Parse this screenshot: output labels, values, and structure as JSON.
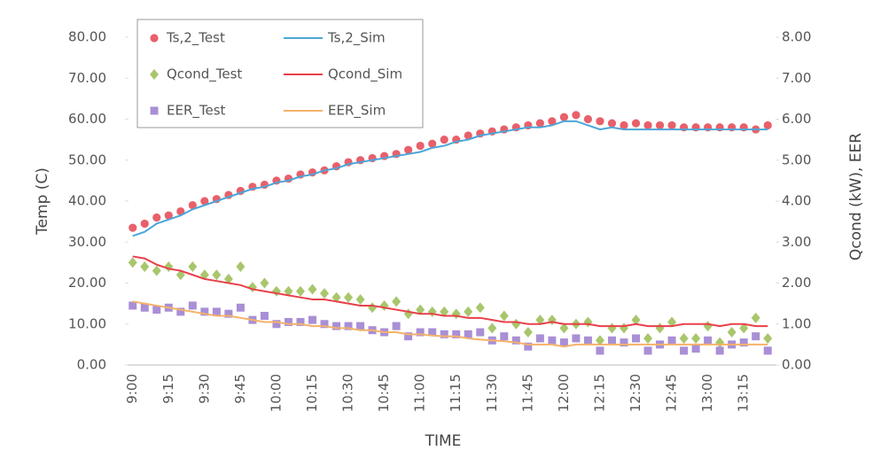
{
  "chart_data": {
    "type": "line",
    "xlabel": "TIME",
    "ylabel": "Temp (C)",
    "y2label": "Qcond (kW), EER",
    "legend": "top-left",
    "categories": [
      "9:00",
      null,
      null,
      "9:15",
      null,
      null,
      "9:30",
      null,
      null,
      "9:45",
      null,
      null,
      "10:00",
      null,
      null,
      "10:15",
      null,
      null,
      "10:30",
      null,
      null,
      "10:45",
      null,
      null,
      "11:00",
      null,
      null,
      "11:15",
      null,
      null,
      "11:30",
      null,
      null,
      "11:45",
      null,
      null,
      "12:00",
      null,
      null,
      "12:15",
      null,
      null,
      "12:30",
      null,
      null,
      "12:45",
      null,
      null,
      "13:00",
      null,
      null,
      "13:15",
      null,
      null
    ],
    "ylim": [
      0,
      80
    ],
    "yticks": [
      {
        "value": 0,
        "label": "0.00"
      },
      {
        "value": 10,
        "label": "10.00"
      },
      {
        "value": 20,
        "label": "20.00"
      },
      {
        "value": 30,
        "label": "30.00"
      },
      {
        "value": 40,
        "label": "40.00"
      },
      {
        "value": 50,
        "label": "50.00"
      },
      {
        "value": 60,
        "label": "60.00"
      },
      {
        "value": 70,
        "label": "70.00"
      },
      {
        "value": 80,
        "label": "80.00"
      }
    ],
    "y2lim": [
      0,
      8
    ],
    "y2ticks": [
      {
        "value": 0,
        "label": "0.00"
      },
      {
        "value": 1,
        "label": "1.00"
      },
      {
        "value": 2,
        "label": "2.00"
      },
      {
        "value": 3,
        "label": "3.00"
      },
      {
        "value": 4,
        "label": "4.00"
      },
      {
        "value": 5,
        "label": "5.00"
      },
      {
        "value": 6,
        "label": "6.00"
      },
      {
        "value": 7,
        "label": "7.00"
      },
      {
        "value": 8,
        "label": "8.00"
      }
    ],
    "series": [
      {
        "name": "Ts,2_Test",
        "color": "#e8606a",
        "marker": "circle",
        "values": [
          33.5,
          34.5,
          36,
          36.5,
          37.5,
          39,
          40,
          40.5,
          41.5,
          42.5,
          43.5,
          44,
          45,
          45.5,
          46.5,
          47,
          47.5,
          48.5,
          49.5,
          50,
          50.5,
          51,
          51.5,
          52.5,
          53.5,
          54,
          55,
          55,
          56,
          56.5,
          57,
          57.5,
          58,
          58.5,
          59,
          59.5,
          60.5,
          61,
          60,
          59.5,
          59,
          58.5,
          59,
          58.5,
          58.5,
          58.5,
          58,
          58,
          58,
          58,
          58,
          58,
          57.5,
          58.5
        ]
      },
      {
        "name": "Ts,2_Sim",
        "color": "#4ca6d8",
        "marker": "none",
        "values": [
          31.5,
          32.5,
          34.5,
          35.5,
          36.5,
          38,
          39,
          40,
          41,
          42,
          43,
          43.5,
          44.5,
          45,
          46,
          46.5,
          47.5,
          48,
          49,
          49.5,
          50,
          50.5,
          51,
          51.5,
          52,
          53,
          53.5,
          54.5,
          55,
          56,
          56.5,
          57,
          57.5,
          58,
          58,
          58.5,
          59.5,
          59.5,
          58.5,
          57.5,
          58,
          57.5,
          57.5,
          57.5,
          57.5,
          57.5,
          57.5,
          57.5,
          57.5,
          57.5,
          57.5,
          57.5,
          57.5,
          57.5
        ]
      },
      {
        "name": "Qcond_Test",
        "color": "#a8c66c",
        "marker": "diamond",
        "axis": "y2",
        "values": [
          2.5,
          2.4,
          2.3,
          2.4,
          2.2,
          2.4,
          2.2,
          2.2,
          2.1,
          2.4,
          1.9,
          2.0,
          1.8,
          1.8,
          1.8,
          1.85,
          1.75,
          1.65,
          1.65,
          1.6,
          1.4,
          1.45,
          1.55,
          1.25,
          1.35,
          1.3,
          1.3,
          1.25,
          1.3,
          1.4,
          0.9,
          1.2,
          1.0,
          0.8,
          1.1,
          1.1,
          0.9,
          1.0,
          1.05,
          0.6,
          0.9,
          0.9,
          1.1,
          0.65,
          0.9,
          1.05,
          0.65,
          0.65,
          0.95,
          0.55,
          0.8,
          0.9,
          1.15,
          0.65
        ]
      },
      {
        "name": "Qcond_Sim",
        "color": "#e8404a",
        "marker": "none",
        "axis": "y2",
        "values": [
          2.65,
          2.6,
          2.45,
          2.35,
          2.3,
          2.2,
          2.1,
          2.05,
          2.0,
          1.95,
          1.85,
          1.8,
          1.75,
          1.7,
          1.65,
          1.6,
          1.6,
          1.55,
          1.5,
          1.45,
          1.45,
          1.4,
          1.35,
          1.3,
          1.25,
          1.25,
          1.2,
          1.2,
          1.15,
          1.15,
          1.1,
          1.05,
          1.05,
          1.0,
          1.0,
          1.05,
          1.0,
          1.0,
          1.0,
          0.95,
          0.95,
          0.95,
          1.0,
          0.95,
          0.95,
          0.95,
          1.0,
          1.0,
          1.0,
          0.95,
          1.0,
          1.0,
          0.95,
          0.95
        ]
      },
      {
        "name": "EER_Test",
        "color": "#a98fd6",
        "marker": "square",
        "axis": "y2",
        "values": [
          1.45,
          1.4,
          1.35,
          1.4,
          1.3,
          1.45,
          1.3,
          1.3,
          1.25,
          1.4,
          1.1,
          1.2,
          1.0,
          1.05,
          1.05,
          1.1,
          1.0,
          0.95,
          0.95,
          0.95,
          0.85,
          0.8,
          0.95,
          0.7,
          0.8,
          0.8,
          0.75,
          0.75,
          0.75,
          0.8,
          0.6,
          0.7,
          0.6,
          0.45,
          0.65,
          0.6,
          0.55,
          0.65,
          0.6,
          0.35,
          0.6,
          0.55,
          0.65,
          0.35,
          0.5,
          0.6,
          0.35,
          0.4,
          0.6,
          0.35,
          0.5,
          0.55,
          0.7,
          0.35
        ]
      },
      {
        "name": "EER_Sim",
        "color": "#f4b26a",
        "marker": "none",
        "axis": "y2",
        "values": [
          1.55,
          1.5,
          1.45,
          1.4,
          1.35,
          1.3,
          1.25,
          1.2,
          1.2,
          1.15,
          1.1,
          1.05,
          1.05,
          1.0,
          1.0,
          0.95,
          0.95,
          0.9,
          0.9,
          0.85,
          0.85,
          0.8,
          0.8,
          0.75,
          0.75,
          0.72,
          0.7,
          0.7,
          0.65,
          0.62,
          0.6,
          0.58,
          0.55,
          0.5,
          0.5,
          0.5,
          0.45,
          0.5,
          0.5,
          0.5,
          0.5,
          0.5,
          0.5,
          0.5,
          0.5,
          0.5,
          0.5,
          0.5,
          0.5,
          0.5,
          0.5,
          0.5,
          0.5,
          0.5
        ]
      }
    ]
  }
}
